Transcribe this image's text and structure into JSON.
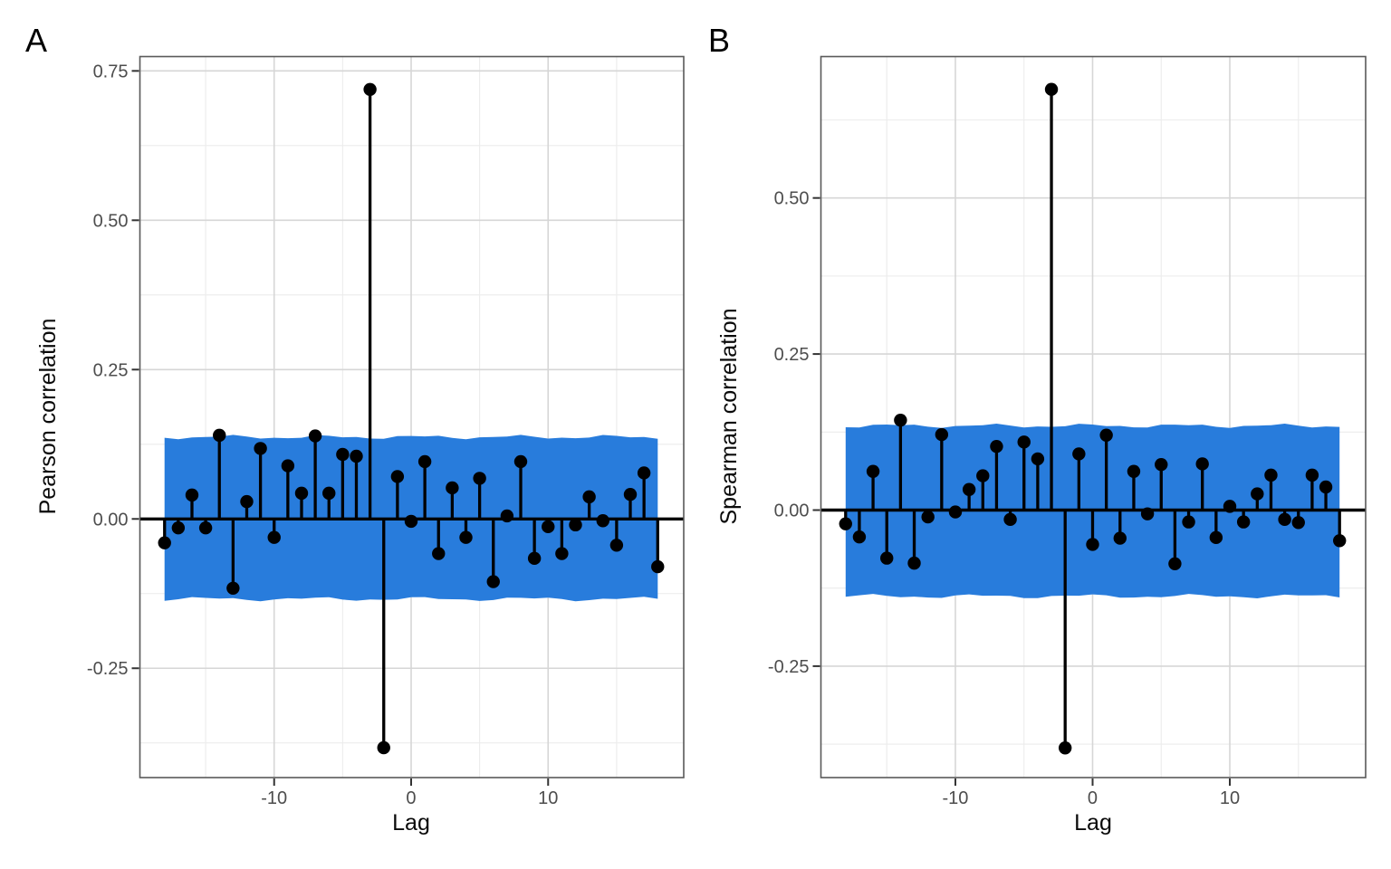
{
  "figure": {
    "background": "#ffffff",
    "panel_tags": [
      "A",
      "B"
    ]
  },
  "styles": {
    "band_color": "#287CDC",
    "stem_color": "#000000",
    "point_color": "#000000",
    "zero_line_color": "#000000",
    "grid_major_color": "#d6d6d6",
    "grid_minor_color": "#ececec",
    "panel_border_color": "#595959",
    "tick_mark_color": "#333333",
    "tick_label_color": "#4d4d4d"
  },
  "chart_data": [
    {
      "tag": "A",
      "type": "scatter",
      "style": "stem-lollipop cross-correlation (CCF) plot with 95% confidence ribbon",
      "title": "",
      "xlabel": "Lag",
      "ylabel": "Pearson correlation",
      "legend": "none",
      "grid": "major+minor",
      "x": [
        -18,
        -17,
        -16,
        -15,
        -14,
        -13,
        -12,
        -11,
        -10,
        -9,
        -8,
        -7,
        -6,
        -5,
        -4,
        -3,
        -2,
        -1,
        0,
        1,
        2,
        3,
        4,
        5,
        6,
        7,
        8,
        9,
        10,
        11,
        12,
        13,
        14,
        15,
        16,
        17,
        18
      ],
      "values": [
        -0.04,
        -0.015,
        0.04,
        -0.015,
        0.14,
        -0.116,
        0.029,
        0.118,
        -0.031,
        0.089,
        0.043,
        0.139,
        0.043,
        0.108,
        0.105,
        0.719,
        -0.383,
        0.071,
        -0.004,
        0.096,
        -0.058,
        0.052,
        -0.031,
        0.068,
        -0.105,
        0.005,
        0.096,
        -0.066,
        -0.013,
        -0.058,
        -0.01,
        0.037,
        -0.003,
        -0.044,
        0.041,
        0.077,
        -0.08
      ],
      "xlim": [
        -19.8,
        19.9
      ],
      "ylim": [
        -0.433,
        0.774
      ],
      "x_major_ticks": [
        -10,
        0,
        10
      ],
      "x_tick_labels": [
        "-10",
        "0",
        "10"
      ],
      "x_minor_gridlines": [
        -15,
        -5,
        5,
        15
      ],
      "y_major_ticks": [
        0.75,
        0.5,
        0.25,
        0.0,
        -0.25
      ],
      "y_tick_labels": [
        "0.75",
        "0.50",
        "0.25",
        "0.00",
        "-0.25"
      ],
      "y_minor_gridlines": [
        0.625,
        0.375,
        0.125,
        -0.125,
        -0.375
      ],
      "confidence_band": {
        "upper": 0.137,
        "lower": -0.134,
        "x_from": -18,
        "x_to": 18
      }
    },
    {
      "tag": "B",
      "type": "scatter",
      "style": "stem-lollipop cross-correlation (CCF) plot with 95% confidence ribbon",
      "title": "",
      "xlabel": "Lag",
      "ylabel": "Spearman correlation",
      "legend": "none",
      "grid": "major+minor",
      "x": [
        -18,
        -17,
        -16,
        -15,
        -14,
        -13,
        -12,
        -11,
        -10,
        -9,
        -8,
        -7,
        -6,
        -5,
        -4,
        -3,
        -2,
        -1,
        0,
        1,
        2,
        3,
        4,
        5,
        6,
        7,
        8,
        9,
        10,
        11,
        12,
        13,
        14,
        15,
        16,
        17,
        18
      ],
      "values": [
        -0.022,
        -0.043,
        0.062,
        -0.077,
        0.144,
        -0.085,
        -0.011,
        0.121,
        -0.003,
        0.033,
        0.055,
        0.102,
        -0.015,
        0.109,
        0.082,
        0.674,
        -0.381,
        0.09,
        -0.055,
        0.12,
        -0.045,
        0.062,
        -0.006,
        0.073,
        -0.086,
        -0.019,
        0.074,
        -0.044,
        0.006,
        -0.019,
        0.026,
        0.056,
        -0.015,
        -0.02,
        0.056,
        0.037,
        -0.049
      ],
      "xlim": [
        -19.8,
        19.9
      ],
      "ylim": [
        -0.4285,
        0.7265
      ],
      "x_major_ticks": [
        -10,
        0,
        10
      ],
      "x_tick_labels": [
        "-10",
        "0",
        "10"
      ],
      "x_minor_gridlines": [
        -15,
        -5,
        5,
        15
      ],
      "y_major_ticks": [
        0.5,
        0.25,
        0.0,
        -0.25
      ],
      "y_tick_labels": [
        "0.50",
        "0.25",
        "0.00",
        "-0.25"
      ],
      "y_minor_gridlines": [
        0.625,
        0.375,
        0.125,
        -0.125,
        -0.375
      ],
      "confidence_band": {
        "upper": 0.135,
        "lower": -0.138,
        "x_from": -18,
        "x_to": 18
      }
    }
  ]
}
